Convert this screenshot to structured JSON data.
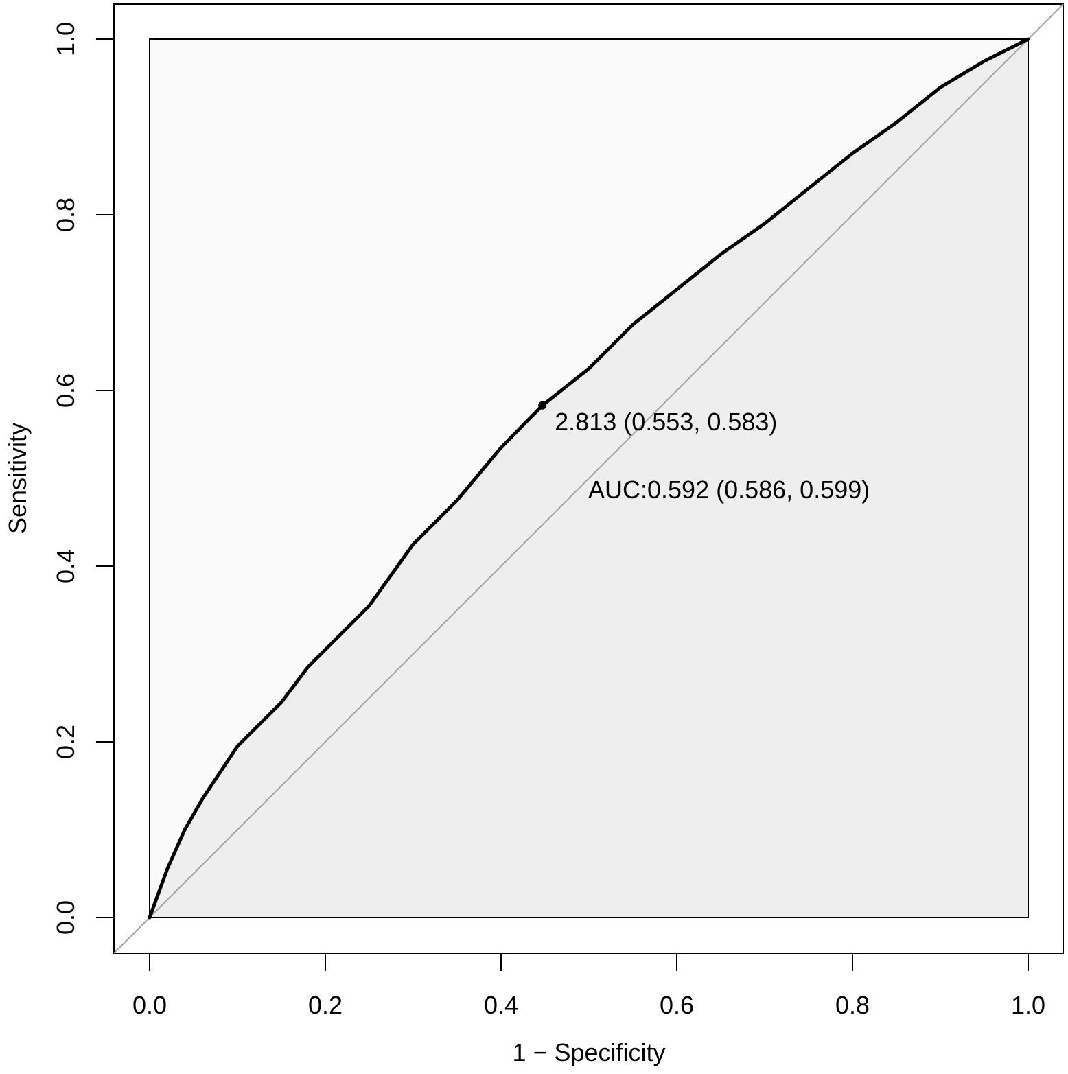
{
  "chart_data": {
    "type": "line",
    "title": "",
    "xlabel": "1 − Specificity",
    "ylabel": "Sensitivity",
    "xlim": [
      0.0,
      1.0
    ],
    "ylim": [
      0.0,
      1.0
    ],
    "xticks": [
      "0.0",
      "0.2",
      "0.4",
      "0.6",
      "0.8",
      "1.0"
    ],
    "yticks": [
      "0.0",
      "0.2",
      "0.4",
      "0.6",
      "0.8",
      "1.0"
    ],
    "grid": false,
    "series": [
      {
        "x": [
          0.0,
          0.02,
          0.04,
          0.06,
          0.08,
          0.1,
          0.12,
          0.15,
          0.18,
          0.2,
          0.25,
          0.3,
          0.35,
          0.4,
          0.447,
          0.5,
          0.55,
          0.6,
          0.65,
          0.7,
          0.75,
          0.8,
          0.85,
          0.9,
          0.95,
          1.0
        ],
        "y": [
          0.0,
          0.055,
          0.1,
          0.135,
          0.165,
          0.195,
          0.215,
          0.245,
          0.285,
          0.305,
          0.355,
          0.425,
          0.475,
          0.535,
          0.583,
          0.625,
          0.675,
          0.715,
          0.755,
          0.79,
          0.83,
          0.87,
          0.905,
          0.945,
          0.975,
          1.0
        ],
        "color": "#000000"
      }
    ],
    "reference_line": {
      "x": [
        0.0,
        1.0
      ],
      "y": [
        0.0,
        1.0
      ],
      "color": "#a0a0a0"
    },
    "auc_fill_color": "#eeeeee",
    "plot_background": "#fafafa",
    "threshold_point": {
      "x": 0.447,
      "y": 0.583,
      "label": "2.813 (0.553, 0.583)"
    },
    "auc_label": "AUC:0.592 (0.586, 0.599)"
  }
}
